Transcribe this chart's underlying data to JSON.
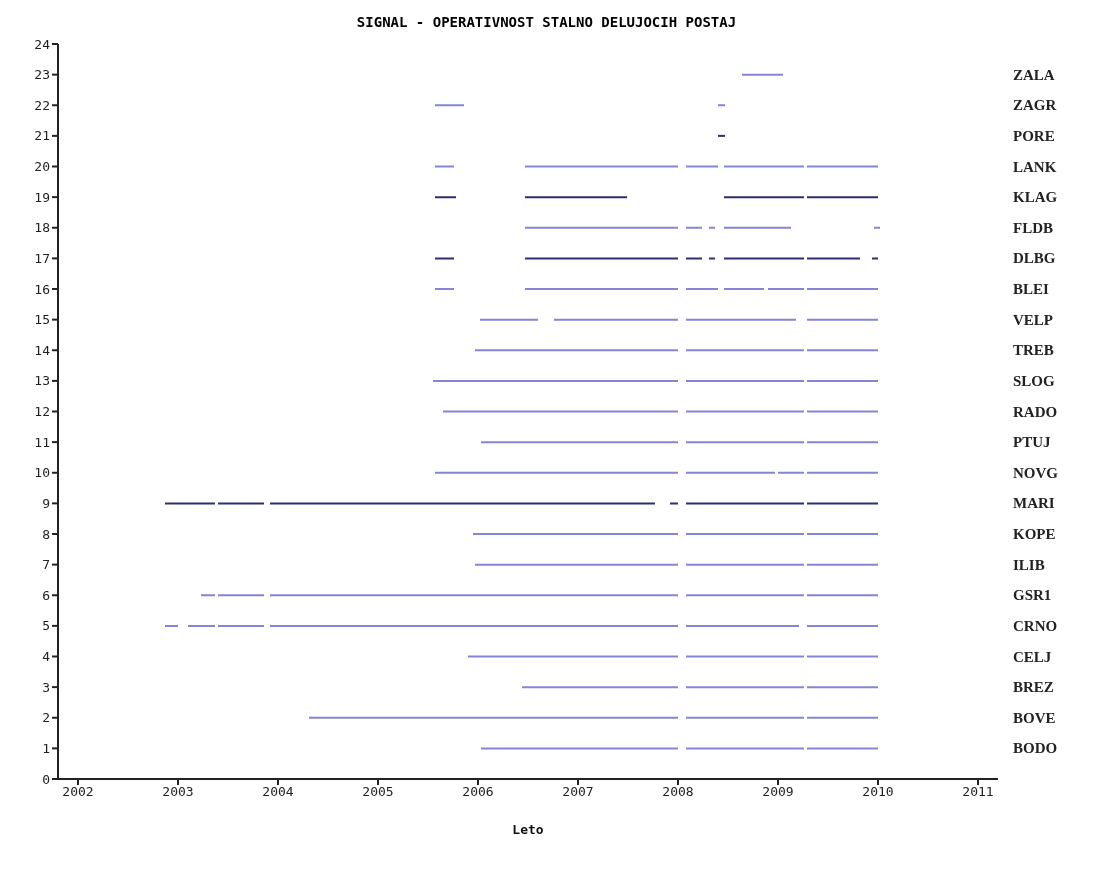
{
  "chart_data": {
    "type": "line",
    "title": "SIGNAL - OPERATIVNOST STALNO DELUJOCIH POSTAJ",
    "xlabel": "Leto",
    "xlim": [
      2001.8,
      2011.2
    ],
    "xticks": [
      2002,
      2003,
      2004,
      2005,
      2006,
      2007,
      2008,
      2009,
      2010,
      2011
    ],
    "ylim": [
      0,
      24
    ],
    "yticks": [
      0,
      1,
      2,
      3,
      4,
      5,
      6,
      7,
      8,
      9,
      10,
      11,
      12,
      13,
      14,
      15,
      16,
      17,
      18,
      19,
      20,
      21,
      22,
      23,
      24
    ],
    "series": [
      {
        "name": "BODO",
        "color": "#8585d6",
        "x": [
          2006.03,
          2008.0,
          2008.04,
          2008.08,
          2009.26,
          2009.275,
          2009.29,
          2010.0
        ],
        "values": [
          1,
          1,
          null,
          1,
          1,
          null,
          1,
          1
        ]
      },
      {
        "name": "BOVE",
        "color": "#8585d6",
        "x": [
          2004.31,
          2008.0,
          2008.04,
          2008.08,
          2009.26,
          2009.275,
          2009.29,
          2010.0
        ],
        "values": [
          2,
          2,
          null,
          2,
          2,
          null,
          2,
          2
        ]
      },
      {
        "name": "BREZ",
        "color": "#8585d6",
        "x": [
          2006.44,
          2008.0,
          2008.04,
          2008.08,
          2009.26,
          2009.275,
          2009.29,
          2010.0
        ],
        "values": [
          3,
          3,
          null,
          3,
          3,
          null,
          3,
          3
        ]
      },
      {
        "name": "CELJ",
        "color": "#8585d6",
        "x": [
          2005.9,
          2008.0,
          2008.04,
          2008.08,
          2009.26,
          2009.275,
          2009.29,
          2010.0
        ],
        "values": [
          4,
          4,
          null,
          4,
          4,
          null,
          4,
          4
        ]
      },
      {
        "name": "CRNO",
        "color": "#8585d6",
        "x": [
          2002.87,
          2003.0,
          2003.05,
          2003.1,
          2003.37,
          2003.385,
          2003.4,
          2003.86,
          2003.89,
          2003.92,
          2008.0,
          2008.04,
          2008.08,
          2009.21,
          2009.25,
          2009.29,
          2010.0
        ],
        "values": [
          5,
          5,
          null,
          5,
          5,
          null,
          5,
          5,
          null,
          5,
          5,
          null,
          5,
          5,
          null,
          5,
          5
        ]
      },
      {
        "name": "GSR1",
        "color": "#8585d6",
        "x": [
          2003.23,
          2003.37,
          2003.385,
          2003.4,
          2003.86,
          2003.89,
          2003.92,
          2008.0,
          2008.04,
          2008.08,
          2009.26,
          2009.275,
          2009.29,
          2010.0
        ],
        "values": [
          6,
          6,
          null,
          6,
          6,
          null,
          6,
          6,
          null,
          6,
          6,
          null,
          6,
          6
        ]
      },
      {
        "name": "ILIB",
        "color": "#8585d6",
        "x": [
          2005.97,
          2008.0,
          2008.04,
          2008.08,
          2009.26,
          2009.275,
          2009.29,
          2010.0
        ],
        "values": [
          7,
          7,
          null,
          7,
          7,
          null,
          7,
          7
        ]
      },
      {
        "name": "KOPE",
        "color": "#8585d6",
        "x": [
          2005.95,
          2008.0,
          2008.04,
          2008.08,
          2009.26,
          2009.275,
          2009.29,
          2010.0
        ],
        "values": [
          8,
          8,
          null,
          8,
          8,
          null,
          8,
          8
        ]
      },
      {
        "name": "MARI",
        "color": "#2e2e6e",
        "x": [
          2002.87,
          2003.37,
          2003.385,
          2003.4,
          2003.86,
          2003.89,
          2003.92,
          2007.77,
          2007.85,
          2007.92,
          2008.0,
          2008.04,
          2008.08,
          2009.26,
          2009.275,
          2009.29,
          2010.0
        ],
        "values": [
          9,
          9,
          null,
          9,
          9,
          null,
          9,
          9,
          null,
          9,
          9,
          null,
          9,
          9,
          null,
          9,
          9
        ]
      },
      {
        "name": "NOVG",
        "color": "#8585d6",
        "x": [
          2005.57,
          2008.0,
          2008.04,
          2008.08,
          2008.97,
          2008.985,
          2009.0,
          2009.26,
          2009.275,
          2009.29,
          2010.0
        ],
        "values": [
          10,
          10,
          null,
          10,
          10,
          null,
          10,
          10,
          null,
          10,
          10
        ]
      },
      {
        "name": "PTUJ",
        "color": "#8585d6",
        "x": [
          2006.03,
          2008.0,
          2008.04,
          2008.08,
          2009.26,
          2009.275,
          2009.29,
          2010.0
        ],
        "values": [
          11,
          11,
          null,
          11,
          11,
          null,
          11,
          11
        ]
      },
      {
        "name": "RADO",
        "color": "#8585d6",
        "x": [
          2005.65,
          2008.0,
          2008.04,
          2008.08,
          2009.26,
          2009.275,
          2009.29,
          2010.0
        ],
        "values": [
          12,
          12,
          null,
          12,
          12,
          null,
          12,
          12
        ]
      },
      {
        "name": "SLOG",
        "color": "#8585d6",
        "x": [
          2005.55,
          2008.0,
          2008.04,
          2008.08,
          2009.26,
          2009.275,
          2009.29,
          2010.0
        ],
        "values": [
          13,
          13,
          null,
          13,
          13,
          null,
          13,
          13
        ]
      },
      {
        "name": "TREB",
        "color": "#8585d6",
        "x": [
          2005.97,
          2008.0,
          2008.04,
          2008.08,
          2009.26,
          2009.275,
          2009.29,
          2010.0
        ],
        "values": [
          14,
          14,
          null,
          14,
          14,
          null,
          14,
          14
        ]
      },
      {
        "name": "VELP",
        "color": "#8585d6",
        "x": [
          2006.02,
          2006.6,
          2006.68,
          2006.76,
          2008.0,
          2008.04,
          2008.08,
          2009.18,
          2009.235,
          2009.29,
          2010.0
        ],
        "values": [
          15,
          15,
          null,
          15,
          15,
          null,
          15,
          15,
          null,
          15,
          15
        ]
      },
      {
        "name": "BLEI",
        "color": "#8585d6",
        "x": [
          2005.57,
          2005.76,
          2006.1,
          2006.47,
          2008.0,
          2008.04,
          2008.08,
          2008.4,
          2008.43,
          2008.46,
          2008.86,
          2008.88,
          2008.9,
          2009.26,
          2009.275,
          2009.29,
          2010.0
        ],
        "values": [
          16,
          16,
          null,
          16,
          16,
          null,
          16,
          16,
          null,
          16,
          16,
          null,
          16,
          16,
          null,
          16,
          16
        ]
      },
      {
        "name": "DLBG",
        "color": "#2e2e6e",
        "x": [
          2005.57,
          2005.76,
          2006.1,
          2006.47,
          2008.0,
          2008.04,
          2008.08,
          2008.24,
          2008.275,
          2008.31,
          2008.37,
          2008.415,
          2008.46,
          2009.26,
          2009.275,
          2009.29,
          2009.82,
          2009.88,
          2009.94,
          2010.0
        ],
        "values": [
          17,
          17,
          null,
          17,
          17,
          null,
          17,
          17,
          null,
          17,
          17,
          null,
          17,
          17,
          null,
          17,
          17,
          null,
          17,
          17
        ]
      },
      {
        "name": "FLDB",
        "color": "#8585d6",
        "x": [
          2006.47,
          2008.0,
          2008.04,
          2008.08,
          2008.24,
          2008.275,
          2008.31,
          2008.37,
          2008.415,
          2008.46,
          2009.13,
          2009.5,
          2009.96,
          2010.02
        ],
        "values": [
          18,
          18,
          null,
          18,
          18,
          null,
          18,
          18,
          null,
          18,
          18,
          null,
          18,
          18
        ]
      },
      {
        "name": "KLAG",
        "color": "#2e2e6e",
        "x": [
          2005.57,
          2005.78,
          2006.1,
          2006.47,
          2007.49,
          2008.0,
          2008.46,
          2009.26,
          2009.275,
          2009.29,
          2010.0
        ],
        "values": [
          19,
          19,
          null,
          19,
          19,
          null,
          19,
          19,
          null,
          19,
          19
        ]
      },
      {
        "name": "LANK",
        "color": "#8585d6",
        "x": [
          2005.57,
          2005.76,
          2006.1,
          2006.47,
          2008.0,
          2008.04,
          2008.08,
          2008.4,
          2008.43,
          2008.46,
          2009.26,
          2009.275,
          2009.29,
          2010.0
        ],
        "values": [
          20,
          20,
          null,
          20,
          20,
          null,
          20,
          20,
          null,
          20,
          20,
          null,
          20,
          20
        ]
      },
      {
        "name": "PORE",
        "color": "#2e2e6e",
        "x": [
          2008.4,
          2008.47
        ],
        "values": [
          21,
          21
        ]
      },
      {
        "name": "ZAGR",
        "color": "#8585d6",
        "x": [
          2005.57,
          2005.86,
          2007.0,
          2008.4,
          2008.47
        ],
        "values": [
          22,
          22,
          null,
          22,
          22
        ]
      },
      {
        "name": "ZALA",
        "color": "#8585d6",
        "x": [
          2008.64,
          2009.05
        ],
        "values": [
          23,
          23
        ]
      }
    ]
  }
}
